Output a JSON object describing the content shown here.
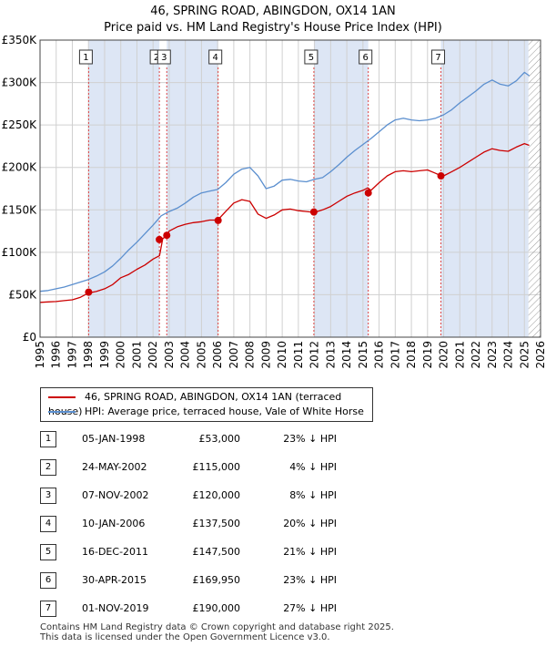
{
  "header": {
    "title": "46, SPRING ROAD, ABINGDON, OX14 1AN",
    "subtitle": "Price paid vs. HM Land Registry's House Price Index (HPI)"
  },
  "colors": {
    "property": "#cc0000",
    "hpi": "#5b8fcf",
    "shade": "#dde6f5",
    "grid": "#d0d0d0",
    "marker_line": "#dd4444",
    "hatch": "#999999"
  },
  "chart_data": {
    "type": "line",
    "title": "46, SPRING ROAD, ABINGDON, OX14 1AN",
    "subtitle": "Price paid vs. HM Land Registry's House Price Index (HPI)",
    "xlabel": "",
    "ylabel": "",
    "xlim": [
      1995,
      2026
    ],
    "ylim": [
      0,
      350000
    ],
    "x_ticks": [
      1995,
      1996,
      1997,
      1998,
      1999,
      2000,
      2001,
      2002,
      2003,
      2004,
      2005,
      2006,
      2007,
      2008,
      2009,
      2010,
      2011,
      2012,
      2013,
      2014,
      2015,
      2016,
      2017,
      2018,
      2019,
      2020,
      2021,
      2022,
      2023,
      2024,
      2025,
      2026
    ],
    "y_ticks": [
      {
        "value": 0,
        "label": "£0"
      },
      {
        "value": 50000,
        "label": "£50K"
      },
      {
        "value": 100000,
        "label": "£100K"
      },
      {
        "value": 150000,
        "label": "£150K"
      },
      {
        "value": 200000,
        "label": "£200K"
      },
      {
        "value": 250000,
        "label": "£250K"
      },
      {
        "value": 300000,
        "label": "£300K"
      },
      {
        "value": 350000,
        "label": "£350K"
      }
    ],
    "grid": true,
    "hatch_from": 2025.25,
    "series": [
      {
        "name": "46, SPRING ROAD, ABINGDON, OX14 1AN (terraced house)",
        "color": "#cc0000",
        "x": [
          1995.0,
          1995.5,
          1996.0,
          1996.5,
          1997.0,
          1997.5,
          1998.0,
          1998.5,
          1999.0,
          1999.5,
          2000.0,
          2000.5,
          2001.0,
          2001.5,
          2002.0,
          2002.4,
          2002.6,
          2002.85,
          2003.0,
          2003.5,
          2004.0,
          2004.5,
          2005.0,
          2005.5,
          2006.0,
          2006.5,
          2007.0,
          2007.5,
          2008.0,
          2008.5,
          2009.0,
          2009.5,
          2010.0,
          2010.5,
          2011.0,
          2011.5,
          2012.0,
          2012.5,
          2013.0,
          2013.5,
          2014.0,
          2014.5,
          2015.0,
          2015.3,
          2015.5,
          2016.0,
          2016.5,
          2017.0,
          2017.5,
          2018.0,
          2018.5,
          2019.0,
          2019.5,
          2019.85,
          2020.0,
          2020.5,
          2021.0,
          2021.5,
          2022.0,
          2022.5,
          2023.0,
          2023.5,
          2024.0,
          2024.5,
          2025.0,
          2025.3
        ],
        "values": [
          41000,
          41500,
          42000,
          43000,
          44000,
          47000,
          52000,
          54000,
          57000,
          62000,
          70000,
          74000,
          80000,
          85000,
          92000,
          96000,
          116000,
          120000,
          125000,
          130000,
          133000,
          135000,
          136000,
          138000,
          138000,
          148000,
          158000,
          162000,
          160000,
          145000,
          140000,
          144000,
          150000,
          151000,
          149000,
          148000,
          147000,
          150000,
          154000,
          160000,
          166000,
          170000,
          173000,
          176000,
          173000,
          182000,
          190000,
          195000,
          196000,
          195000,
          196000,
          197000,
          193000,
          190000,
          190000,
          195000,
          200000,
          206000,
          212000,
          218000,
          222000,
          220000,
          219000,
          224000,
          228000,
          226000
        ]
      },
      {
        "name": "HPI: Average price, terraced house, Vale of White Horse",
        "color": "#5b8fcf",
        "x": [
          1995.0,
          1995.5,
          1996.0,
          1996.5,
          1997.0,
          1997.5,
          1998.0,
          1998.5,
          1999.0,
          1999.5,
          2000.0,
          2000.5,
          2001.0,
          2001.5,
          2002.0,
          2002.5,
          2003.0,
          2003.5,
          2004.0,
          2004.5,
          2005.0,
          2005.5,
          2006.0,
          2006.5,
          2007.0,
          2007.5,
          2008.0,
          2008.5,
          2009.0,
          2009.5,
          2010.0,
          2010.5,
          2011.0,
          2011.5,
          2012.0,
          2012.5,
          2013.0,
          2013.5,
          2014.0,
          2014.5,
          2015.0,
          2015.5,
          2016.0,
          2016.5,
          2017.0,
          2017.5,
          2018.0,
          2018.5,
          2019.0,
          2019.5,
          2020.0,
          2020.5,
          2021.0,
          2021.5,
          2022.0,
          2022.5,
          2023.0,
          2023.5,
          2024.0,
          2024.5,
          2025.0,
          2025.3
        ],
        "values": [
          54000,
          55000,
          57000,
          59000,
          62000,
          65000,
          68000,
          72000,
          77000,
          84000,
          93000,
          103000,
          112000,
          122000,
          132000,
          143000,
          148000,
          152000,
          158000,
          165000,
          170000,
          172000,
          174000,
          182000,
          192000,
          198000,
          200000,
          190000,
          175000,
          178000,
          185000,
          186000,
          184000,
          183000,
          186000,
          188000,
          195000,
          203000,
          212000,
          220000,
          227000,
          234000,
          242000,
          250000,
          256000,
          258000,
          256000,
          255000,
          256000,
          258000,
          262000,
          268000,
          276000,
          283000,
          290000,
          298000,
          303000,
          298000,
          296000,
          302000,
          312000,
          308000
        ]
      }
    ],
    "sales": [
      {
        "num": "1",
        "date": "05-JAN-1998",
        "x": 1998.01,
        "price": 53000
      },
      {
        "num": "2",
        "date": "24-MAY-2002",
        "x": 2002.39,
        "price": 115000
      },
      {
        "num": "3",
        "date": "07-NOV-2002",
        "x": 2002.85,
        "price": 120000
      },
      {
        "num": "4",
        "date": "10-JAN-2006",
        "x": 2006.03,
        "price": 137500
      },
      {
        "num": "5",
        "date": "16-DEC-2011",
        "x": 2011.96,
        "price": 147500
      },
      {
        "num": "6",
        "date": "30-APR-2015",
        "x": 2015.33,
        "price": 169950
      },
      {
        "num": "7",
        "date": "01-NOV-2019",
        "x": 2019.83,
        "price": 190000
      }
    ]
  },
  "legend": {
    "property_label": "46, SPRING ROAD, ABINGDON, OX14 1AN (terraced house)",
    "hpi_label": "HPI: Average price, terraced house, Vale of White Horse"
  },
  "sales_table": [
    {
      "num": "1",
      "date": "05-JAN-1998",
      "price": "£53,000",
      "hpi": "23% ↓ HPI"
    },
    {
      "num": "2",
      "date": "24-MAY-2002",
      "price": "£115,000",
      "hpi": "4% ↓ HPI"
    },
    {
      "num": "3",
      "date": "07-NOV-2002",
      "price": "£120,000",
      "hpi": "8% ↓ HPI"
    },
    {
      "num": "4",
      "date": "10-JAN-2006",
      "price": "£137,500",
      "hpi": "20% ↓ HPI"
    },
    {
      "num": "5",
      "date": "16-DEC-2011",
      "price": "£147,500",
      "hpi": "21% ↓ HPI"
    },
    {
      "num": "6",
      "date": "30-APR-2015",
      "price": "£169,950",
      "hpi": "23% ↓ HPI"
    },
    {
      "num": "7",
      "date": "01-NOV-2019",
      "price": "£190,000",
      "hpi": "27% ↓ HPI"
    }
  ],
  "footer": {
    "line1": "Contains HM Land Registry data © Crown copyright and database right 2025.",
    "line2": "This data is licensed under the Open Government Licence v3.0."
  }
}
